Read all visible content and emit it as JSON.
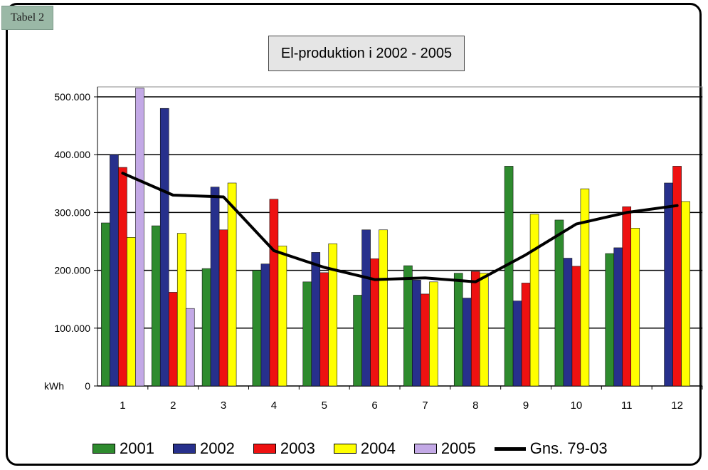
{
  "tabel_label": "Tabel 2",
  "chart_data": {
    "type": "bar",
    "title": "El-produktion i 2002 - 2005",
    "ylabel": "kWh",
    "xlabel": "",
    "ylim": [
      0,
      500000
    ],
    "yticks": [
      {
        "value": 0,
        "label": "0"
      },
      {
        "value": 100000,
        "label": "100.000"
      },
      {
        "value": 200000,
        "label": "200.000"
      },
      {
        "value": 300000,
        "label": "300.000"
      },
      {
        "value": 400000,
        "label": "400.000"
      },
      {
        "value": 500000,
        "label": "500.000"
      }
    ],
    "grid": true,
    "legend_position": "bottom",
    "categories": [
      "1",
      "2",
      "3",
      "4",
      "5",
      "6",
      "7",
      "8",
      "9",
      "10",
      "11",
      "12"
    ],
    "series": [
      {
        "name": "2001",
        "color": "#2e8b2e",
        "values": [
          282000,
          277000,
          203000,
          200000,
          180000,
          157000,
          208000,
          195000,
          380000,
          287000,
          229000,
          null
        ]
      },
      {
        "name": "2002",
        "color": "#27308c",
        "values": [
          400000,
          480000,
          344000,
          211000,
          231000,
          270000,
          183000,
          152000,
          147000,
          221000,
          239000,
          351000
        ]
      },
      {
        "name": "2003",
        "color": "#ee1111",
        "values": [
          378000,
          162000,
          270000,
          323000,
          196000,
          220000,
          159000,
          198000,
          178000,
          207000,
          310000,
          380000
        ]
      },
      {
        "name": "2004",
        "color": "#ffff00",
        "values": [
          257000,
          264000,
          351000,
          242000,
          246000,
          270000,
          180000,
          195000,
          297000,
          341000,
          273000,
          319000
        ]
      },
      {
        "name": "2005",
        "color": "#c3a9e6",
        "values": [
          515000,
          134000,
          null,
          null,
          null,
          null,
          null,
          null,
          null,
          null,
          null,
          null
        ]
      }
    ],
    "line_series": {
      "name": "Gns. 79-03",
      "color": "#000000",
      "values": [
        368000,
        330000,
        327000,
        234000,
        205000,
        184000,
        187000,
        180000,
        227000,
        280000,
        300000,
        312000
      ]
    }
  }
}
